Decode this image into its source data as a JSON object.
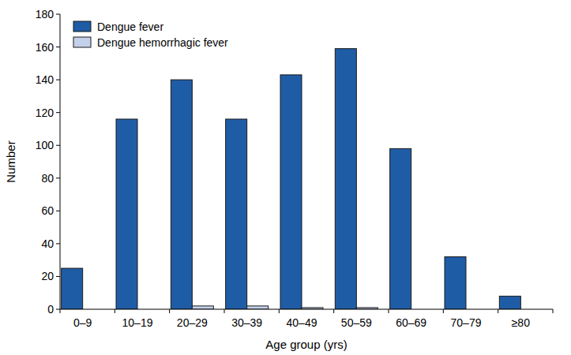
{
  "chart_data": {
    "type": "bar",
    "x_label": "Age group (yrs)",
    "y_label": "Number",
    "categories": [
      "0–9",
      "10–19",
      "20–29",
      "30–39",
      "40–49",
      "50–59",
      "60–69",
      "70–79",
      "≥80"
    ],
    "series": [
      {
        "name": "Dengue fever",
        "color": "#1f5ca6",
        "values": [
          25,
          116,
          140,
          116,
          143,
          159,
          98,
          32,
          8
        ]
      },
      {
        "name": "Dengue hemorrhagic fever",
        "color": "#c3d1ea",
        "values": [
          0,
          0,
          2,
          2,
          1,
          1,
          0,
          0,
          0
        ]
      }
    ],
    "ylim": [
      0,
      180
    ],
    "yticks": [
      0,
      20,
      40,
      60,
      80,
      100,
      120,
      140,
      160,
      180
    ],
    "grid": false,
    "legend": "upper left"
  }
}
